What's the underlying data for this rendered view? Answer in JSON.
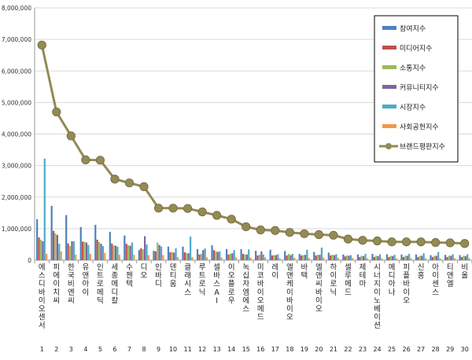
{
  "chart_data": {
    "type": "bar",
    "ylim": [
      0,
      8000000
    ],
    "yticks": [
      0,
      1000000,
      2000000,
      3000000,
      4000000,
      5000000,
      6000000,
      7000000,
      8000000
    ],
    "ytick_labels": [
      "0",
      "1,000,000",
      "2,000,000",
      "3,000,000",
      "4,000,000",
      "5,000,000",
      "6,000,000",
      "7,000,000",
      "8,000,000"
    ],
    "grid": true,
    "legend_position": "top-right",
    "categories": [
      "에스디바이오센서",
      "피에이치씨",
      "한국비엔씨",
      "유앤아이",
      "인트로메딕",
      "세종메디칼",
      "수젠텍",
      "디오",
      "인바디",
      "덴티움",
      "클래시스",
      "루트로닉",
      "셀바스AI",
      "이오플로우",
      "녹십자엠에스",
      "미코바이오메드",
      "레이",
      "엘앤케이바이오",
      "바텍",
      "엘앤씨바이오",
      "하이로닉",
      "셀루메드",
      "제테마",
      "시너지이노베이션",
      "메디아나",
      "피플바이오",
      "신흥",
      "아이센스",
      "티앤엘",
      "비올"
    ],
    "ranks": [
      "1",
      "2",
      "3",
      "4",
      "5",
      "6",
      "7",
      "8",
      "9",
      "10",
      "11",
      "12",
      "13",
      "14",
      "15",
      "16",
      "17",
      "18",
      "19",
      "20",
      "21",
      "22",
      "23",
      "24",
      "25",
      "26",
      "27",
      "28",
      "29",
      "30"
    ],
    "series": [
      {
        "name": "참여지수",
        "color": "#4f81bd",
        "values": [
          1300000,
          1720000,
          1430000,
          1050000,
          1120000,
          900000,
          780000,
          320000,
          300000,
          430000,
          430000,
          350000,
          470000,
          350000,
          350000,
          300000,
          330000,
          290000,
          200000,
          260000,
          240000,
          180000,
          180000,
          200000,
          190000,
          180000,
          180000,
          160000,
          170000,
          160000
        ]
      },
      {
        "name": "미디어지수",
        "color": "#c0504d",
        "values": [
          720000,
          930000,
          530000,
          590000,
          650000,
          530000,
          520000,
          380000,
          280000,
          250000,
          250000,
          180000,
          320000,
          180000,
          200000,
          150000,
          150000,
          150000,
          150000,
          150000,
          150000,
          120000,
          100000,
          100000,
          100000,
          100000,
          100000,
          100000,
          100000,
          100000
        ]
      },
      {
        "name": "소통지수",
        "color": "#9bbb59",
        "values": [
          650000,
          850000,
          450000,
          580000,
          580000,
          470000,
          470000,
          350000,
          560000,
          260000,
          220000,
          200000,
          280000,
          200000,
          180000,
          170000,
          160000,
          200000,
          160000,
          170000,
          170000,
          150000,
          140000,
          140000,
          140000,
          140000,
          140000,
          140000,
          140000,
          140000
        ]
      },
      {
        "name": "커뮤니티지수",
        "color": "#8064a2",
        "values": [
          600000,
          800000,
          600000,
          560000,
          520000,
          460000,
          460000,
          760000,
          480000,
          240000,
          220000,
          320000,
          260000,
          220000,
          180000,
          280000,
          160000,
          160000,
          170000,
          170000,
          160000,
          140000,
          130000,
          130000,
          130000,
          140000,
          140000,
          140000,
          140000,
          130000
        ]
      },
      {
        "name": "시장지수",
        "color": "#4bacc6",
        "values": [
          3220000,
          520000,
          600000,
          480000,
          450000,
          430000,
          560000,
          500000,
          430000,
          380000,
          750000,
          370000,
          280000,
          320000,
          340000,
          180000,
          190000,
          200000,
          330000,
          400000,
          190000,
          160000,
          200000,
          190000,
          170000,
          200000,
          220000,
          260000,
          190000,
          190000
        ]
      },
      {
        "name": "사회공헌지수",
        "color": "#f79646",
        "values": [
          200000,
          280000,
          180000,
          200000,
          230000,
          170000,
          170000,
          160000,
          160000,
          100000,
          100000,
          90000,
          90000,
          90000,
          80000,
          90000,
          60000,
          80000,
          70000,
          80000,
          70000,
          70000,
          60000,
          60000,
          60000,
          60000,
          60000,
          60000,
          60000,
          60000
        ]
      }
    ],
    "line": {
      "name": "브랜드평판지수",
      "color": "#948a54",
      "values": [
        6820000,
        4700000,
        3940000,
        3180000,
        3170000,
        2570000,
        2450000,
        2330000,
        1650000,
        1650000,
        1640000,
        1530000,
        1420000,
        1300000,
        1060000,
        960000,
        940000,
        880000,
        840000,
        810000,
        790000,
        670000,
        630000,
        610000,
        580000,
        580000,
        580000,
        560000,
        550000,
        530000
      ]
    }
  }
}
